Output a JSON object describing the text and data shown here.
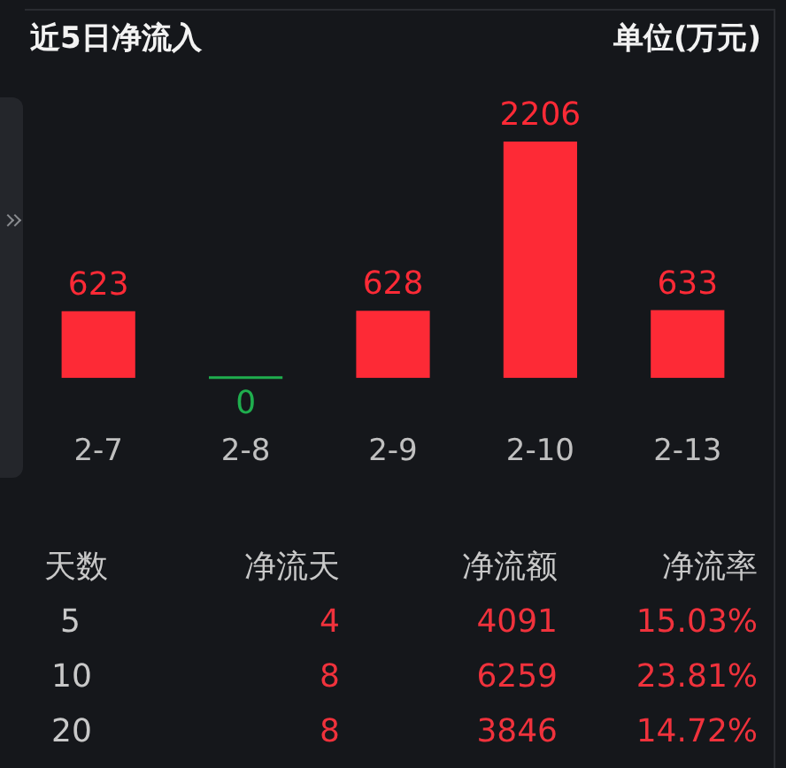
{
  "chart_data": {
    "type": "bar",
    "title": "近5日净流入",
    "subtitle": "单位(万元)",
    "categories": [
      "2-7",
      "2-8",
      "2-9",
      "2-10",
      "2-13"
    ],
    "values": [
      623,
      0,
      628,
      2206,
      633
    ],
    "colors": [
      "#fd2a36",
      "#1fae4e",
      "#fd2a36",
      "#fd2a36",
      "#fd2a36"
    ],
    "data_labels": true,
    "legend": false,
    "annotations": [
      "天数",
      "净流天",
      "净流额",
      "净流率",
      "5",
      "4",
      "4091",
      "15.03%",
      "10",
      "8",
      "6259",
      "23.81%",
      "20",
      "8",
      "3846",
      "14.72%"
    ]
  }
}
